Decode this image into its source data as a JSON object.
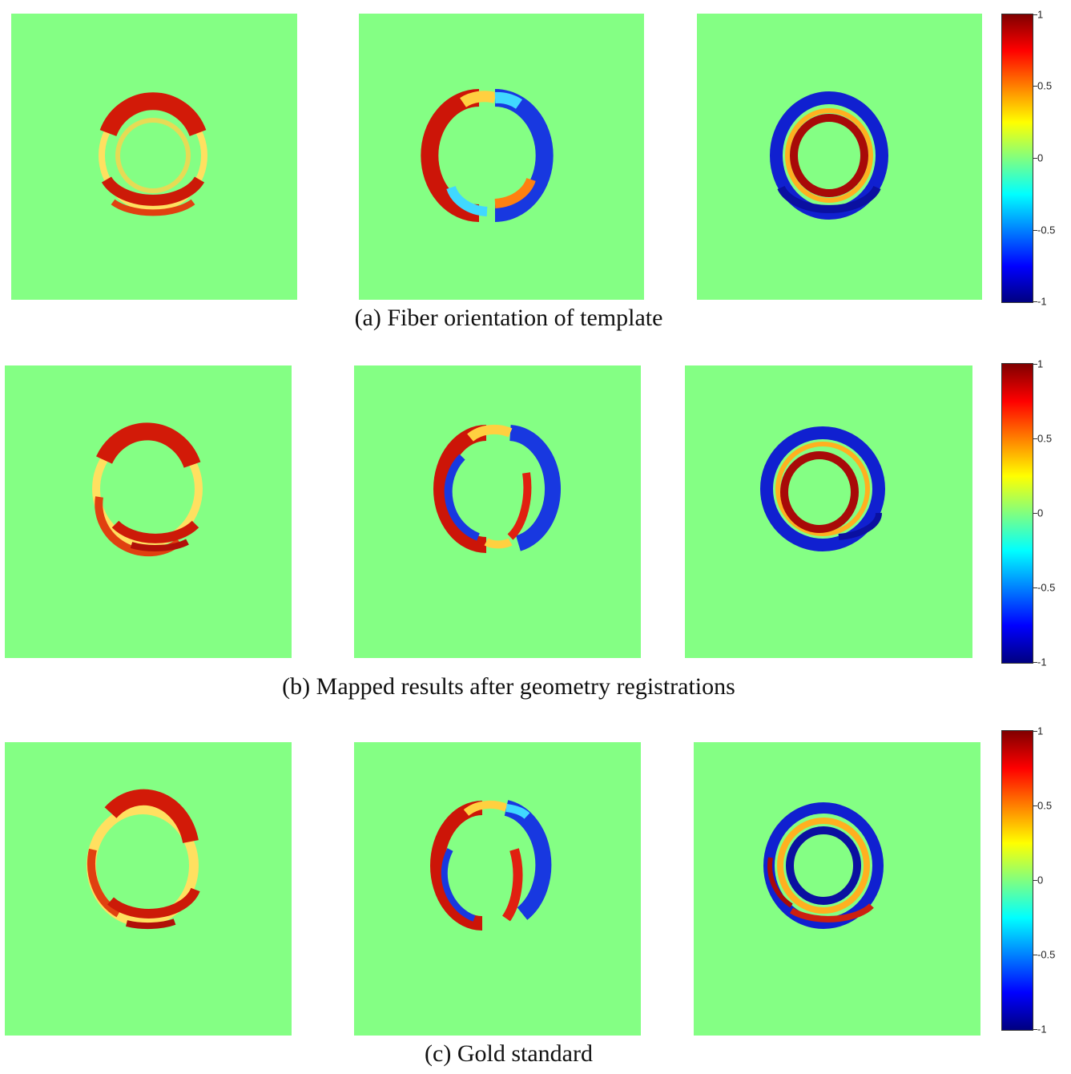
{
  "figure": {
    "rows": [
      {
        "caption": "(a) Fiber orientation of template",
        "colorbar_ticks": [
          "1",
          "0.5",
          "0",
          "-0.5",
          "-1"
        ],
        "panels": [
          {
            "pattern": "field-component-1",
            "colors": {
              "outer": "#d21a08",
              "mid": "#ffd24a",
              "inner": "#e8580a"
            }
          },
          {
            "pattern": "field-component-2",
            "colors": {
              "left": "#cc1508",
              "right": "#1838e0",
              "top_left": "#ffd040",
              "top_right": "#40d8ff"
            }
          },
          {
            "pattern": "field-component-3",
            "colors": {
              "outer": "#1020d0",
              "mid": "#ffb020",
              "inner": "#a80a08"
            }
          }
        ]
      },
      {
        "caption": "(b) Mapped results after geometry registrations",
        "colorbar_ticks": [
          "1",
          "0.5",
          "0",
          "-0.5",
          "-1"
        ],
        "panels": [
          {
            "pattern": "field-component-1",
            "colors": {
              "outer": "#d21a08",
              "mid": "#ffd24a",
              "inner": "#e8580a"
            }
          },
          {
            "pattern": "field-component-2",
            "colors": {
              "left": "#cc1508",
              "right": "#1838e0",
              "top_left": "#ffd040",
              "top_right": "#40d8ff"
            }
          },
          {
            "pattern": "field-component-3",
            "colors": {
              "outer": "#1020d0",
              "mid": "#ffb020",
              "inner": "#a80a08"
            }
          }
        ]
      },
      {
        "caption": "(c) Gold standard",
        "colorbar_ticks": [
          "1",
          "0.5",
          "0",
          "-0.5",
          "-1"
        ],
        "panels": [
          {
            "pattern": "field-component-1",
            "colors": {
              "outer": "#d21a08",
              "mid": "#ffd24a",
              "inner": "#e8580a"
            }
          },
          {
            "pattern": "field-component-2",
            "colors": {
              "left": "#cc1508",
              "right": "#1838e0",
              "top_left": "#ffd040",
              "top_right": "#40d8ff"
            }
          },
          {
            "pattern": "field-component-3",
            "colors": {
              "outer": "#1020d0",
              "mid": "#ffb020",
              "inner": "#a80a08"
            }
          }
        ]
      }
    ],
    "background_color": "#84ff84",
    "colormap": "jet"
  }
}
